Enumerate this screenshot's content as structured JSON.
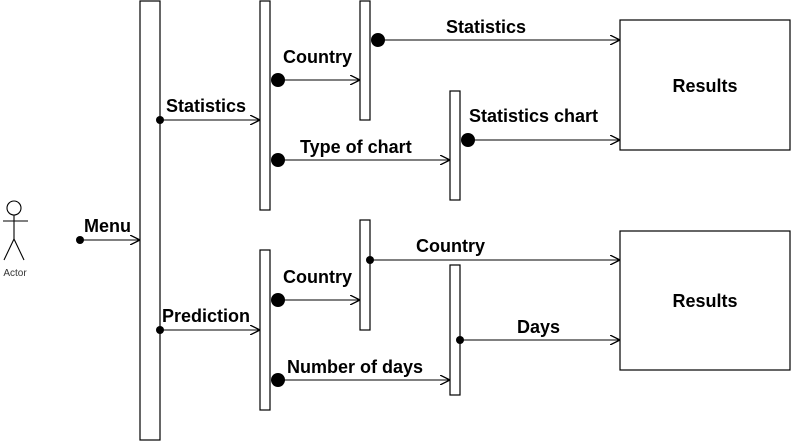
{
  "actor": {
    "label": "Actor"
  },
  "messages": {
    "menu": "Menu",
    "statistics_left": "Statistics",
    "prediction": "Prediction",
    "country_top": "Country",
    "type_of_chart": "Type of chart",
    "statistics_top": "Statistics",
    "statistics_chart": "Statistics chart",
    "country_bottom": "Country",
    "number_of_days": "Number of days",
    "country_result": "Country",
    "days": "Days"
  },
  "results": {
    "top": "Results",
    "bottom": "Results"
  }
}
